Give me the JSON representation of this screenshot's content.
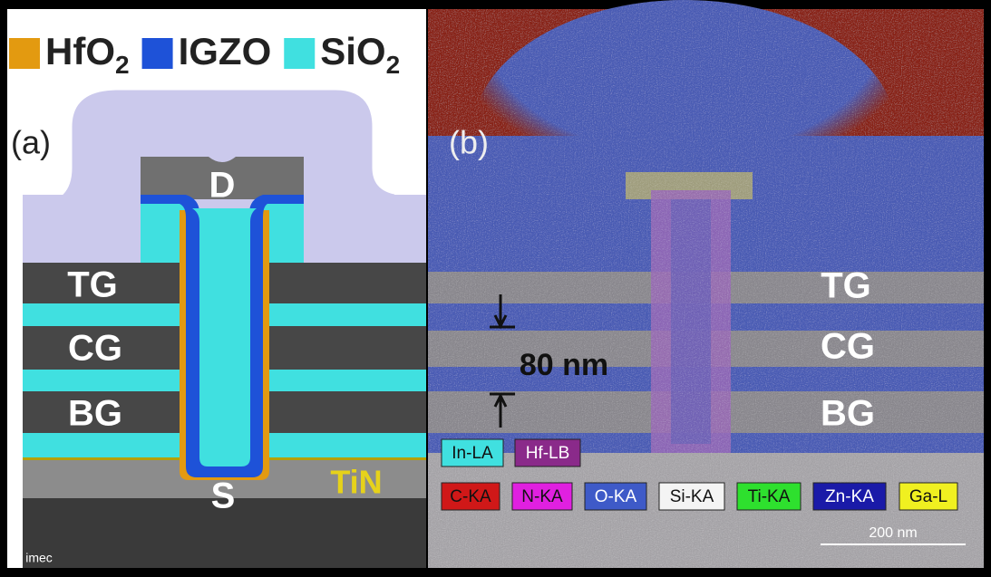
{
  "legend": [
    {
      "label": "HfO",
      "subscript": "2"
    },
    {
      "label": "IGZO"
    },
    {
      "label": "SiO",
      "subscript": "2"
    }
  ],
  "panel_a": {
    "label": "(a)",
    "drain": "D",
    "layers": [
      "TG",
      "CG",
      "BG"
    ],
    "source": "S",
    "tin": "TiN",
    "credit": "© imec"
  },
  "panel_b": {
    "label": "(b)",
    "layers": [
      "TG",
      "CG",
      "BG"
    ],
    "dimension": "80 nm",
    "element_tags": [
      "In-LA",
      "Hf-LB",
      "C-KA",
      "N-KA",
      "O-KA",
      "Si-KA",
      "Ti-KA",
      "Zn-KA",
      "Ga-L"
    ],
    "scale_bar": "200 nm"
  }
}
